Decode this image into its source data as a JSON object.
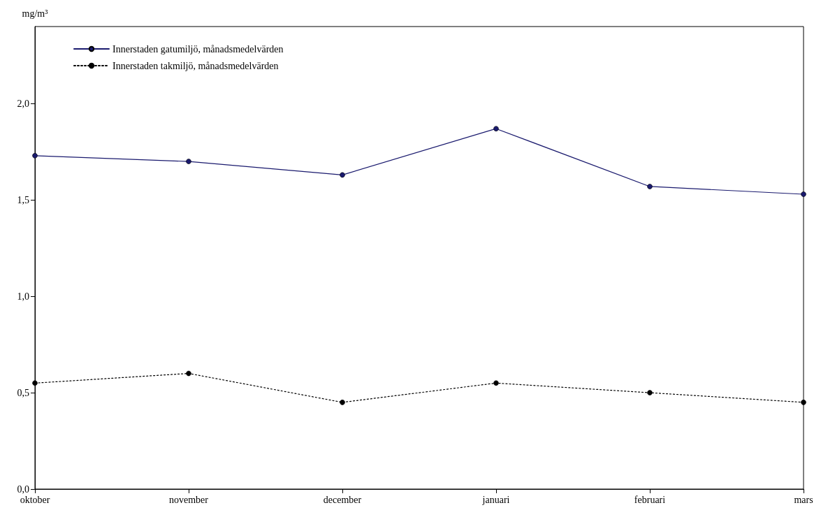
{
  "chart_data": {
    "type": "line",
    "ylabel": "mg/m³",
    "categories": [
      "oktober",
      "november",
      "december",
      "januari",
      "februari",
      "mars"
    ],
    "series": [
      {
        "name": "Innerstaden gatumiljö, månadsmedelvärden",
        "color": "#1a1a6e",
        "line_style": "solid",
        "values": [
          1.73,
          1.7,
          1.63,
          1.87,
          1.57,
          1.53
        ]
      },
      {
        "name": "Innerstaden takmiljö, månadsmedelvärden",
        "color": "#000000",
        "line_style": "dotted",
        "values": [
          0.55,
          0.6,
          0.45,
          0.55,
          0.5,
          0.45
        ]
      }
    ],
    "ylim": [
      0,
      2.4
    ],
    "yticks": [
      {
        "value": 0,
        "label": "0,0"
      },
      {
        "value": 0.5,
        "label": "0,5"
      },
      {
        "value": 1,
        "label": "1,0"
      },
      {
        "value": 1.5,
        "label": "1,5"
      },
      {
        "value": 2,
        "label": "2,0"
      }
    ],
    "grid": false,
    "legend": "top left",
    "marker": "circle"
  }
}
